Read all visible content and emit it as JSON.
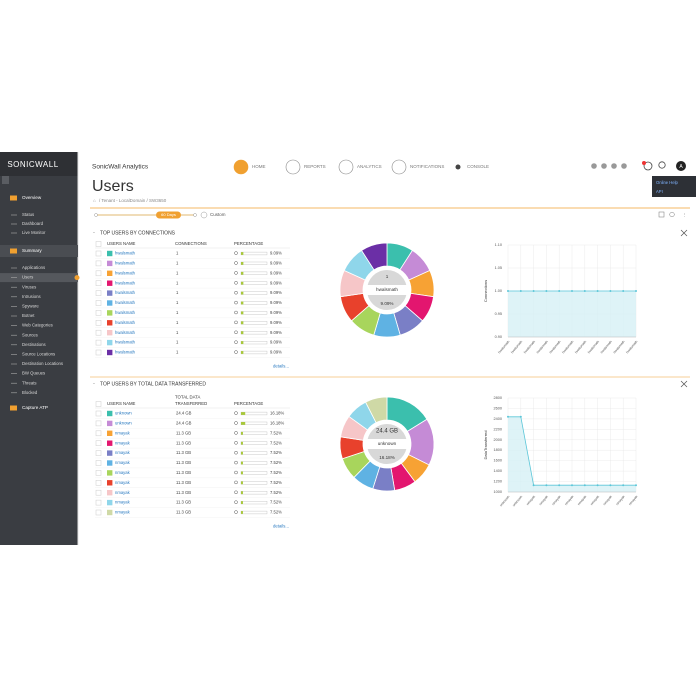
{
  "sidebar": {
    "logo": "SONICWALL",
    "groups": [
      {
        "title": "Overview",
        "items": [
          "Status",
          "Dashboard",
          "Live Monitor"
        ]
      },
      {
        "title": "Summary",
        "items": [
          "Applications",
          "Users",
          "Viruses",
          "Intrusions",
          "Spyware",
          "Botnet",
          "Web Categories",
          "Sources",
          "Destinations",
          "Source Locations",
          "Destination Locations",
          "BW Queues",
          "Threats",
          "Blocked"
        ]
      },
      {
        "title": "Capture ATP",
        "items": []
      }
    ]
  },
  "header": {
    "app_title": "SonicWall Analytics",
    "nav": [
      "HOME",
      "REPORTS",
      "ANALYTICS",
      "NOTIFICATIONS",
      "CONSOLE"
    ],
    "avatar": "A",
    "menu": [
      "Online Help",
      "API"
    ]
  },
  "page": {
    "title": "Users",
    "breadcrumb": "/ Tenant - LocalDomain / SW3650",
    "range": "60 Days",
    "custom": "Custom"
  },
  "panels": [
    {
      "title": "TOP USERS BY CONNECTIONS",
      "columns": [
        [
          "USERS NAME"
        ],
        [
          "CONNECTIONS"
        ],
        [
          "PERCENTAGE"
        ]
      ],
      "rows": [
        {
          "user": "hwalsmath",
          "value": 1,
          "percent": 9.09,
          "percent_label": "9.09%",
          "color": "#3bbfad"
        },
        {
          "user": "hwalsmath",
          "value": 1,
          "percent": 9.09,
          "percent_label": "9.09%",
          "color": "#c58bd6"
        },
        {
          "user": "hwalsmath",
          "value": 1,
          "percent": 9.09,
          "percent_label": "9.09%",
          "color": "#f7a234"
        },
        {
          "user": "hwalsmath",
          "value": 1,
          "percent": 9.09,
          "percent_label": "9.09%",
          "color": "#e3166f"
        },
        {
          "user": "hwalsmath",
          "value": 1,
          "percent": 9.09,
          "percent_label": "9.09%",
          "color": "#7a7fc6"
        },
        {
          "user": "hwalsmath",
          "value": 1,
          "percent": 9.09,
          "percent_label": "9.09%",
          "color": "#5fb2e3"
        },
        {
          "user": "hwalsmath",
          "value": 1,
          "percent": 9.09,
          "percent_label": "9.09%",
          "color": "#a8d55c"
        },
        {
          "user": "hwalsmath",
          "value": 1,
          "percent": 9.09,
          "percent_label": "9.09%",
          "color": "#e8412c"
        },
        {
          "user": "hwalsmath",
          "value": 1,
          "percent": 9.09,
          "percent_label": "9.09%",
          "color": "#f6c6c8"
        },
        {
          "user": "hwalsmath",
          "value": 1,
          "percent": 9.09,
          "percent_label": "9.09%",
          "color": "#8fd6ea"
        },
        {
          "user": "hwalsmath",
          "value": 1,
          "percent": 9.09,
          "percent_label": "9.09%",
          "color": "#6b2fa6"
        }
      ],
      "details": "details...",
      "donut_center": [
        "1",
        "hwalsmath",
        "9.09%"
      ],
      "chart": {
        "type": "line",
        "y_label": "Connections",
        "color": "#5bc6d8",
        "values": [
          1,
          1,
          1,
          1,
          1,
          1,
          1,
          1,
          1,
          1,
          1
        ],
        "ylim": [
          0.9,
          1.1
        ],
        "yticks": [
          {
            "value": 0.9,
            "label": "0.90"
          },
          {
            "value": 0.95,
            "label": "0.95"
          },
          {
            "value": 1,
            "label": "1.00"
          },
          {
            "value": 1.05,
            "label": "1.05"
          },
          {
            "value": 1.1,
            "label": "1.10"
          }
        ],
        "grid": true
      }
    },
    {
      "title": "TOP USERS BY TOTAL DATA TRANSFERRED",
      "columns": [
        [
          "USERS NAME"
        ],
        [
          "TOTAL DATA",
          "TRANSFERRED"
        ],
        [
          "PERCENTAGE"
        ]
      ],
      "rows": [
        {
          "user": "unknown",
          "value": "24.4 GB",
          "percent": 16.18,
          "percent_label": "16.18%",
          "color": "#3bbfad"
        },
        {
          "user": "unknown",
          "value": "24.4 GB",
          "percent": 16.18,
          "percent_label": "16.18%",
          "color": "#c58bd6"
        },
        {
          "user": "nmayak",
          "value": "11.3 GB",
          "percent": 7.52,
          "percent_label": "7.52%",
          "color": "#f7a234"
        },
        {
          "user": "nmayak",
          "value": "11.3 GB",
          "percent": 7.52,
          "percent_label": "7.52%",
          "color": "#e3166f"
        },
        {
          "user": "nmayak",
          "value": "11.3 GB",
          "percent": 7.52,
          "percent_label": "7.52%",
          "color": "#7a7fc6"
        },
        {
          "user": "nmayak",
          "value": "11.3 GB",
          "percent": 7.52,
          "percent_label": "7.52%",
          "color": "#5fb2e3"
        },
        {
          "user": "nmayak",
          "value": "11.3 GB",
          "percent": 7.52,
          "percent_label": "7.52%",
          "color": "#a8d55c"
        },
        {
          "user": "nmayak",
          "value": "11.3 GB",
          "percent": 7.52,
          "percent_label": "7.52%",
          "color": "#e8412c"
        },
        {
          "user": "nmayak",
          "value": "11.3 GB",
          "percent": 7.52,
          "percent_label": "7.52%",
          "color": "#f6c6c8"
        },
        {
          "user": "nmayak",
          "value": "11.3 GB",
          "percent": 7.52,
          "percent_label": "7.52%",
          "color": "#8fd6ea"
        },
        {
          "user": "nmayak",
          "value": "11.3 GB",
          "percent": 7.52,
          "percent_label": "7.52%",
          "color": "#cfd9a6"
        }
      ],
      "details": "details...",
      "donut_center": [
        "24.4 GB",
        "unknown",
        "16.18%"
      ],
      "chart": {
        "type": "line",
        "y_label": "DataTransferred",
        "color": "#5bc6d8",
        "values": [
          2440,
          2440,
          1130,
          1130,
          1130,
          1130,
          1130,
          1130,
          1130,
          1130,
          1130
        ],
        "ylim": [
          1000,
          2800
        ],
        "yticks": [
          1000,
          1200,
          1400,
          1600,
          1800,
          2000,
          2200,
          2400,
          2600,
          2800
        ],
        "grid": true
      }
    }
  ]
}
